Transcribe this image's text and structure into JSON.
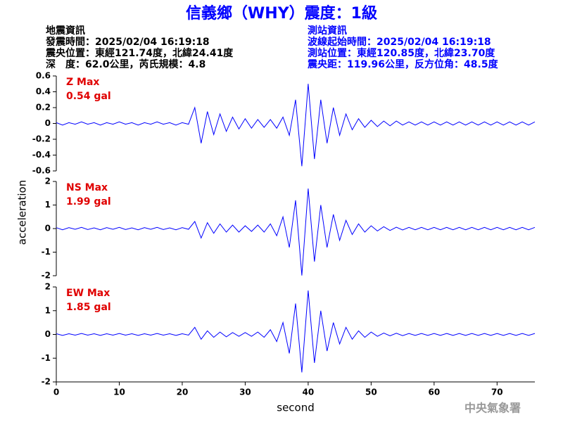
{
  "title": "信義鄉（WHY）震度：1級",
  "header": {
    "left": [
      "地震資訊",
      "發震時間：2025/02/04 16:19:18",
      "震央位置：東經121.74度，北緯24.41度",
      "深　度：62.0公里，芮氏規模：4.8"
    ],
    "right": [
      "測站資訊",
      "波線起始時間：2025/02/04 16:19:18",
      "測站位置：東經120.85度，北緯23.70度",
      "震央距：119.96公里，反方位角：48.5度"
    ]
  },
  "footer": "中央氣象署",
  "chart_data": [
    {
      "type": "line",
      "annotation": [
        "Z Max",
        "0.54 gal"
      ],
      "ylim": [
        -0.6,
        0.6
      ],
      "yticks": [
        0.6,
        0.4,
        0.2,
        0,
        -0.2,
        -0.4,
        -0.6
      ],
      "xlim": [
        0,
        76
      ],
      "color": "#0000ff",
      "x": [
        0,
        1,
        2,
        3,
        4,
        5,
        6,
        7,
        8,
        9,
        10,
        11,
        12,
        13,
        14,
        15,
        16,
        17,
        18,
        19,
        20,
        21,
        22,
        23,
        24,
        25,
        26,
        27,
        28,
        29,
        30,
        31,
        32,
        33,
        34,
        35,
        36,
        37,
        38,
        39,
        40,
        41,
        42,
        43,
        44,
        45,
        46,
        47,
        48,
        49,
        50,
        51,
        52,
        53,
        54,
        55,
        56,
        57,
        58,
        59,
        60,
        61,
        62,
        63,
        64,
        65,
        66,
        67,
        68,
        69,
        70,
        71,
        72,
        73,
        74,
        75,
        76
      ],
      "values": [
        0.01,
        -0.02,
        0.01,
        -0.01,
        0.02,
        -0.01,
        0.01,
        -0.02,
        0.01,
        -0.01,
        0.02,
        -0.01,
        0.01,
        -0.02,
        0.01,
        -0.01,
        0.02,
        -0.01,
        0.01,
        -0.02,
        0.01,
        -0.01,
        0.2,
        -0.25,
        0.15,
        -0.14,
        0.12,
        -0.1,
        0.08,
        -0.07,
        0.06,
        -0.06,
        0.05,
        -0.05,
        0.05,
        -0.06,
        0.08,
        -0.15,
        0.3,
        -0.54,
        0.5,
        -0.45,
        0.3,
        -0.25,
        0.2,
        -0.15,
        0.12,
        -0.08,
        0.06,
        -0.05,
        0.04,
        -0.04,
        0.03,
        -0.03,
        0.03,
        -0.02,
        0.02,
        -0.02,
        0.02,
        -0.02,
        0.02,
        -0.02,
        0.02,
        -0.02,
        0.02,
        -0.02,
        0.02,
        -0.02,
        0.02,
        -0.02,
        0.02,
        -0.02,
        0.02,
        -0.02,
        0.02,
        -0.02,
        0.02
      ]
    },
    {
      "type": "line",
      "annotation": [
        "NS Max",
        "1.99 gal"
      ],
      "ylim": [
        -2,
        2
      ],
      "yticks": [
        2,
        1,
        0,
        -1,
        -2
      ],
      "xlim": [
        0,
        76
      ],
      "color": "#0000ff",
      "x": [
        0,
        1,
        2,
        3,
        4,
        5,
        6,
        7,
        8,
        9,
        10,
        11,
        12,
        13,
        14,
        15,
        16,
        17,
        18,
        19,
        20,
        21,
        22,
        23,
        24,
        25,
        26,
        27,
        28,
        29,
        30,
        31,
        32,
        33,
        34,
        35,
        36,
        37,
        38,
        39,
        40,
        41,
        42,
        43,
        44,
        45,
        46,
        47,
        48,
        49,
        50,
        51,
        52,
        53,
        54,
        55,
        56,
        57,
        58,
        59,
        60,
        61,
        62,
        63,
        64,
        65,
        66,
        67,
        68,
        69,
        70,
        71,
        72,
        73,
        74,
        75,
        76
      ],
      "values": [
        0.04,
        -0.05,
        0.04,
        -0.03,
        0.05,
        -0.04,
        0.03,
        -0.05,
        0.04,
        -0.03,
        0.05,
        -0.04,
        0.03,
        -0.05,
        0.04,
        -0.03,
        0.05,
        -0.04,
        0.03,
        -0.05,
        0.04,
        -0.03,
        0.3,
        -0.4,
        0.25,
        -0.2,
        0.2,
        -0.15,
        0.15,
        -0.15,
        0.12,
        -0.12,
        0.15,
        -0.15,
        0.2,
        -0.3,
        0.5,
        -0.8,
        1.2,
        -1.99,
        1.7,
        -1.4,
        1.0,
        -0.8,
        0.6,
        -0.5,
        0.35,
        -0.25,
        0.2,
        -0.15,
        0.12,
        -0.1,
        0.08,
        -0.08,
        0.06,
        -0.06,
        0.05,
        -0.05,
        0.05,
        -0.05,
        0.05,
        -0.05,
        0.05,
        -0.05,
        0.05,
        -0.05,
        0.05,
        -0.05,
        0.05,
        -0.05,
        0.05,
        -0.05,
        0.05,
        -0.05,
        0.05,
        -0.05,
        0.05
      ]
    },
    {
      "type": "line",
      "annotation": [
        "EW Max",
        "1.85 gal"
      ],
      "ylim": [
        -2,
        2
      ],
      "yticks": [
        2,
        1,
        0,
        -1,
        -2
      ],
      "xlim": [
        0,
        76
      ],
      "xticks": [
        0,
        10,
        20,
        30,
        40,
        50,
        60,
        70
      ],
      "xlabel": "second",
      "color": "#0000ff",
      "x": [
        0,
        1,
        2,
        3,
        4,
        5,
        6,
        7,
        8,
        9,
        10,
        11,
        12,
        13,
        14,
        15,
        16,
        17,
        18,
        19,
        20,
        21,
        22,
        23,
        24,
        25,
        26,
        27,
        28,
        29,
        30,
        31,
        32,
        33,
        34,
        35,
        36,
        37,
        38,
        39,
        40,
        41,
        42,
        43,
        44,
        45,
        46,
        47,
        48,
        49,
        50,
        51,
        52,
        53,
        54,
        55,
        56,
        57,
        58,
        59,
        60,
        61,
        62,
        63,
        64,
        65,
        66,
        67,
        68,
        69,
        70,
        71,
        72,
        73,
        74,
        75,
        76
      ],
      "values": [
        0.03,
        -0.04,
        0.03,
        -0.03,
        0.04,
        -0.03,
        0.03,
        -0.04,
        0.03,
        -0.03,
        0.04,
        -0.03,
        0.03,
        -0.04,
        0.03,
        -0.03,
        0.04,
        -0.03,
        0.03,
        -0.04,
        0.03,
        -0.03,
        0.3,
        -0.2,
        0.15,
        -0.12,
        0.1,
        -0.1,
        0.08,
        -0.08,
        0.08,
        -0.08,
        0.1,
        -0.12,
        0.2,
        -0.3,
        0.5,
        -0.8,
        1.3,
        -1.6,
        1.85,
        -1.2,
        1.0,
        -0.7,
        0.5,
        -0.4,
        0.3,
        -0.2,
        0.15,
        -0.12,
        0.1,
        -0.08,
        0.06,
        -0.06,
        0.05,
        -0.05,
        0.04,
        -0.04,
        0.04,
        -0.04,
        0.04,
        -0.04,
        0.04,
        -0.04,
        0.04,
        -0.04,
        0.04,
        -0.04,
        0.04,
        -0.04,
        0.04,
        -0.04,
        0.04,
        -0.04,
        0.04,
        -0.04,
        0.04
      ]
    }
  ],
  "ylabel": "acceleration"
}
